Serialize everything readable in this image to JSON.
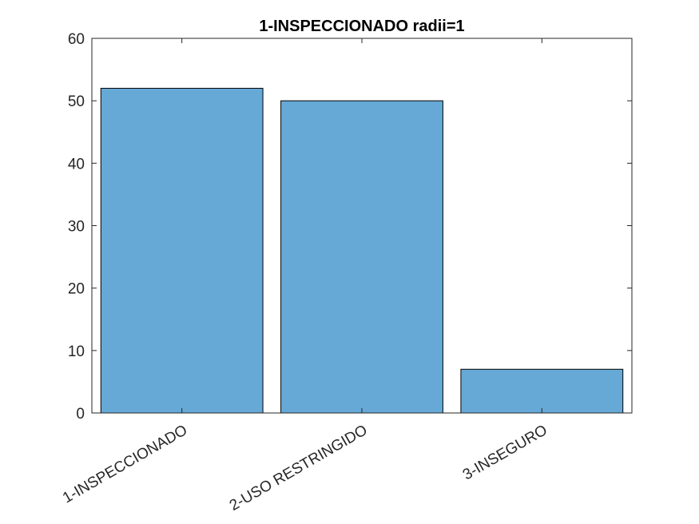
{
  "chart_data": {
    "type": "bar",
    "title": "1-INSPECCIONADO radii=1",
    "xlabel": "",
    "ylabel": "",
    "categories": [
      "1-INSPECCIONADO",
      "2-USO RESTRINGIDO",
      "3-INSEGURO"
    ],
    "values": [
      52,
      50,
      7
    ],
    "ylim": [
      0,
      60
    ],
    "yticks": [
      0,
      10,
      20,
      30,
      40,
      50,
      60
    ],
    "grid": false,
    "legend": "none",
    "bar_color": "#66a9d6",
    "edge_color": "#000000"
  }
}
